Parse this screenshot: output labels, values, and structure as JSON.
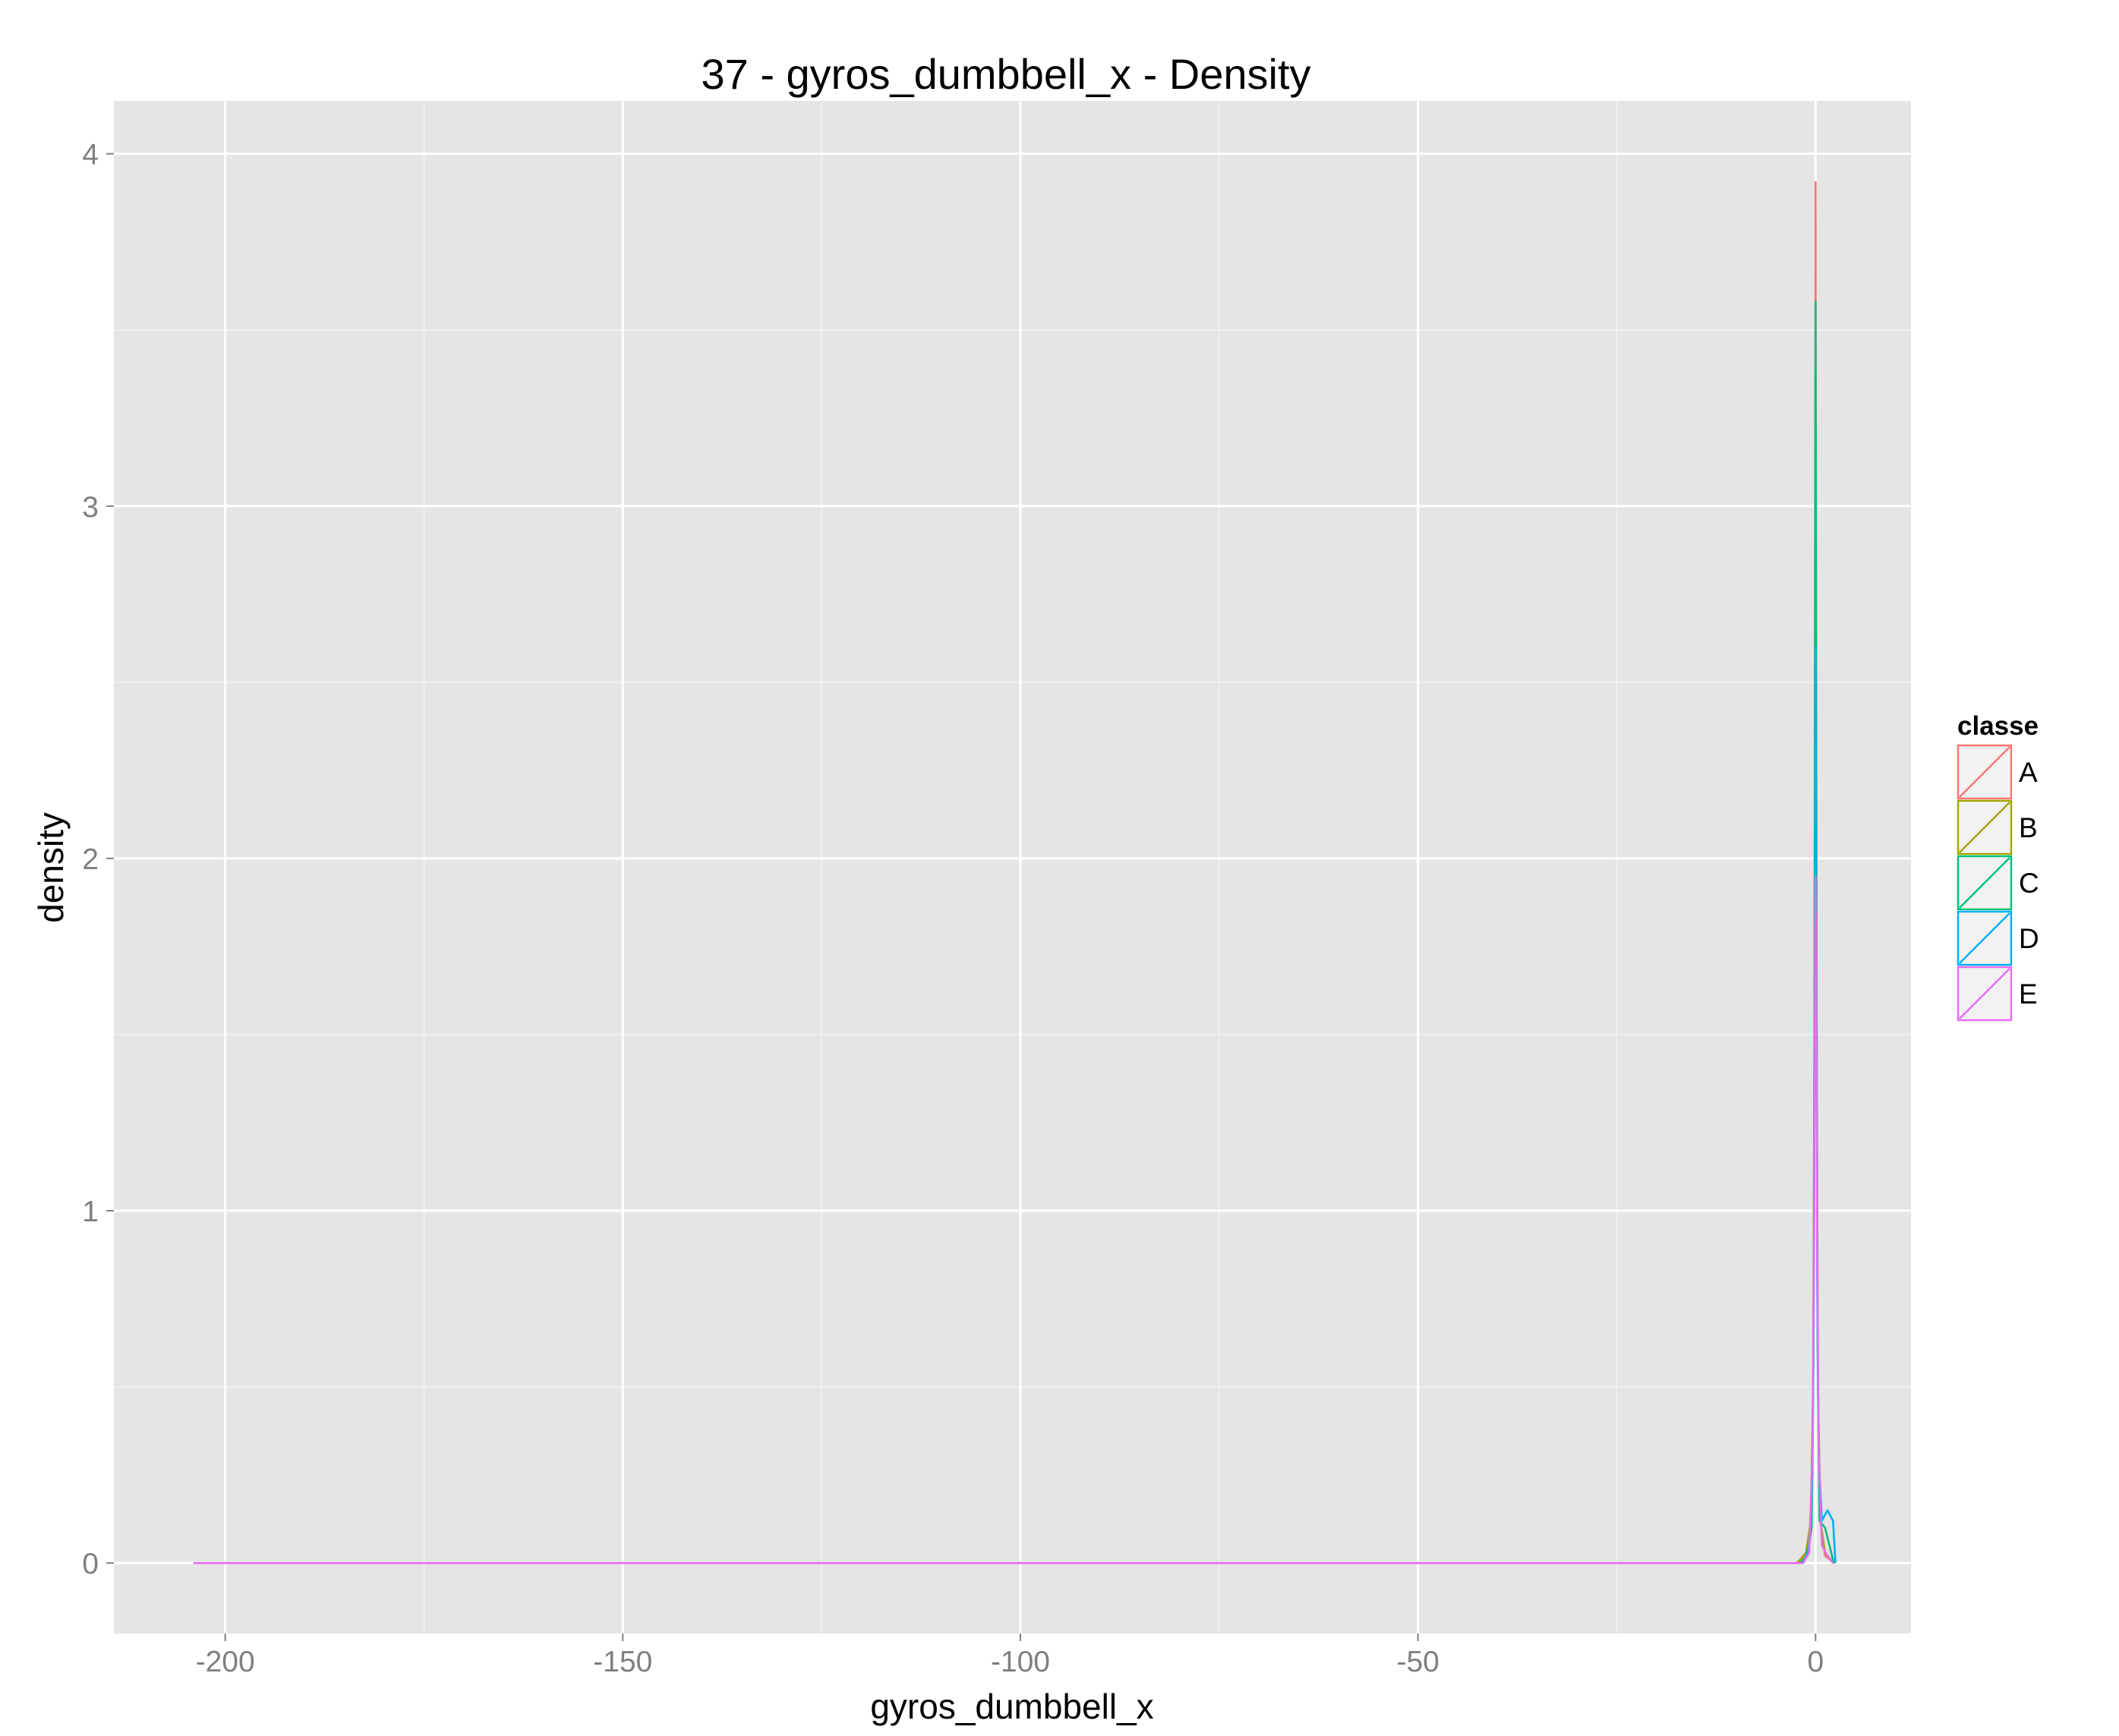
{
  "chart_data": {
    "type": "area",
    "title": "37 - gyros_dumbbell_x - Density",
    "xlabel": "gyros_dumbbell_x",
    "ylabel": "density",
    "xlim": [
      -214,
      12
    ],
    "ylim": [
      -0.2,
      4.15
    ],
    "x_ticks": [
      -200,
      -150,
      -100,
      -50,
      0
    ],
    "x_tick_labels": [
      "-200",
      "-150",
      "-100",
      "-50",
      "0"
    ],
    "y_ticks": [
      0,
      1,
      2,
      3,
      4
    ],
    "y_tick_labels": [
      "0",
      "1",
      "2",
      "3",
      "4"
    ],
    "grid": true,
    "legend": {
      "title": "classe",
      "position": "right"
    },
    "series": [
      {
        "name": "A",
        "color": "#F8766D",
        "x": [
          -2.5,
          -1.2,
          -0.6,
          -0.3,
          -0.15,
          -0.05,
          0,
          0.05,
          0.15,
          0.3,
          0.6,
          1.2,
          2.4
        ],
        "y": [
          0,
          0.02,
          0.1,
          0.5,
          1.5,
          3.0,
          3.92,
          3.0,
          1.5,
          0.5,
          0.12,
          0.02,
          0
        ]
      },
      {
        "name": "B",
        "color": "#A3A500",
        "x": [
          -2.3,
          -1.2,
          -0.6,
          -0.3,
          -0.15,
          -0.05,
          0,
          0.05,
          0.15,
          0.3,
          0.6,
          1.2,
          2.3
        ],
        "y": [
          0,
          0.03,
          0.12,
          0.5,
          1.4,
          2.7,
          3.45,
          2.7,
          1.4,
          0.5,
          0.12,
          0.03,
          0
        ]
      },
      {
        "name": "C",
        "color": "#00BF7D",
        "x": [
          -2.0,
          -1.0,
          -0.5,
          -0.25,
          -0.1,
          -0.03,
          0,
          0.03,
          0.1,
          0.25,
          0.5,
          1.2,
          2.3
        ],
        "y": [
          0,
          0.02,
          0.1,
          0.6,
          1.8,
          3.2,
          3.58,
          3.2,
          1.8,
          0.6,
          0.12,
          0.1,
          0
        ]
      },
      {
        "name": "D",
        "color": "#00B0F6",
        "x": [
          -1.5,
          -0.8,
          -0.4,
          -0.2,
          -0.08,
          0,
          0.08,
          0.2,
          0.4,
          0.8,
          1.5,
          2.2,
          2.5
        ],
        "y": [
          0,
          0.05,
          0.25,
          0.8,
          1.8,
          2.6,
          1.8,
          0.8,
          0.3,
          0.12,
          0.15,
          0.12,
          0
        ]
      },
      {
        "name": "E",
        "color": "#E76BF3",
        "x": [
          -204,
          -1.6,
          -0.8,
          -0.4,
          -0.2,
          -0.08,
          0,
          0.08,
          0.2,
          0.4,
          0.8,
          1.5,
          2.2
        ],
        "y": [
          0,
          0,
          0.03,
          0.3,
          0.9,
          1.6,
          1.95,
          1.6,
          0.9,
          0.3,
          0.05,
          0.02,
          0
        ]
      }
    ]
  }
}
